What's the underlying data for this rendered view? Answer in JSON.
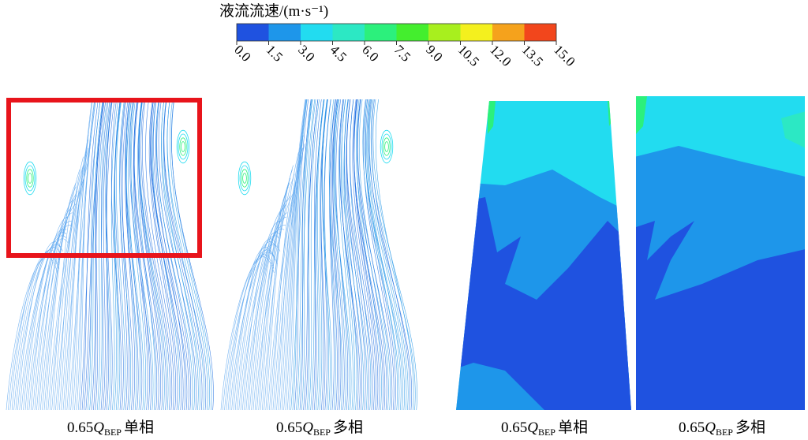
{
  "colorbar": {
    "title": "液流流速/(m·s⁻¹)",
    "ticks": [
      {
        "value": 0,
        "label": "0.0"
      },
      {
        "value": 1.5,
        "label": "1.5"
      },
      {
        "value": 3,
        "label": "3.0"
      },
      {
        "value": 4.5,
        "label": "4.5"
      },
      {
        "value": 6,
        "label": "6.0"
      },
      {
        "value": 7.5,
        "label": "7.5"
      },
      {
        "value": 9,
        "label": "9.0"
      },
      {
        "value": 10.5,
        "label": "10.5"
      },
      {
        "value": 12,
        "label": "12.0"
      },
      {
        "value": 13.5,
        "label": "13.5"
      },
      {
        "value": 15,
        "label": "15.0"
      }
    ],
    "colors": [
      "#1f52e0",
      "#1e96ea",
      "#22dcf0",
      "#2ce8c4",
      "#2cf07c",
      "#44ee2e",
      "#a8ef1e",
      "#f4f01e",
      "#f5a21c",
      "#f2461c"
    ]
  },
  "panels": [
    {
      "prefix": "0.65",
      "q": "Q",
      "sub": "BEP",
      "suffix": "单相"
    },
    {
      "prefix": "0.65",
      "q": "Q",
      "sub": "BEP",
      "suffix": "多相"
    },
    {
      "prefix": "0.65",
      "q": "Q",
      "sub": "BEP",
      "suffix": "单相"
    },
    {
      "prefix": "0.65",
      "q": "Q",
      "sub": "BEP",
      "suffix": "多相"
    }
  ]
}
